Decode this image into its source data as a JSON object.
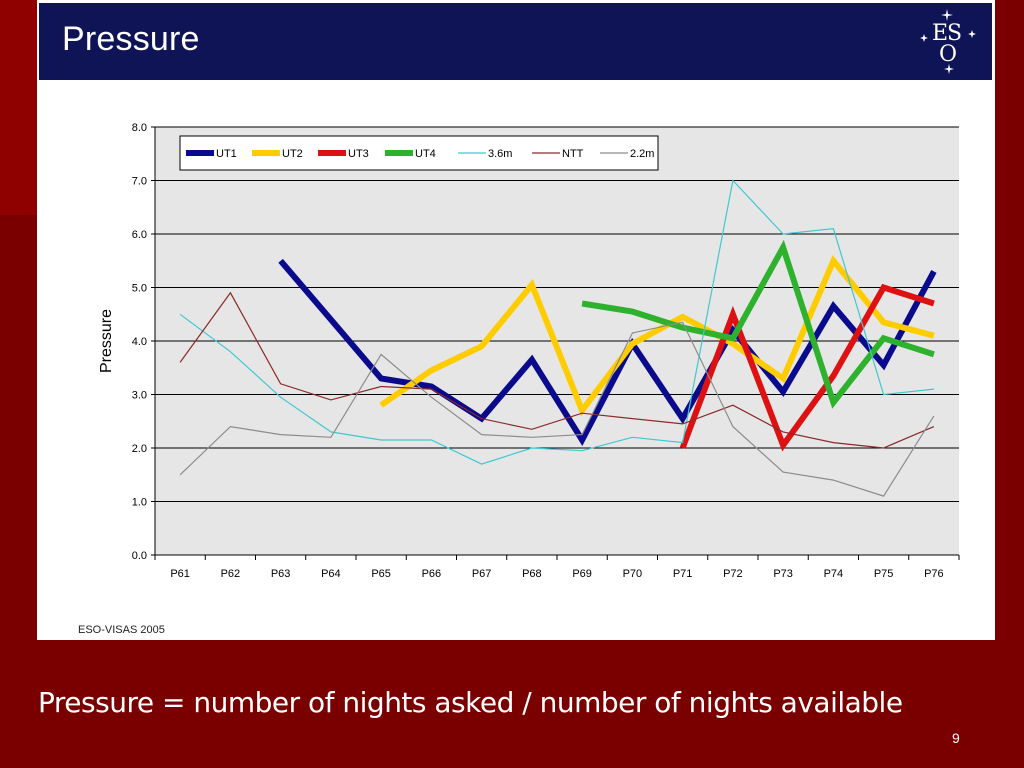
{
  "slide": {
    "title": "Pressure",
    "logo_text": "ESO",
    "source_note": "ESO-VISAS 2005",
    "caption": "Pressure = number of nights asked / number of nights available",
    "page_number": "9"
  },
  "colors": {
    "background": "#7a0000",
    "title_bar": "#0f1457",
    "plot_area": "#e6e6e6"
  },
  "chart_data": {
    "type": "line",
    "title": "",
    "xlabel": "",
    "ylabel": "Pressure",
    "ylim": [
      0,
      8
    ],
    "yticks": [
      "0.0",
      "1.0",
      "2.0",
      "3.0",
      "4.0",
      "5.0",
      "6.0",
      "7.0",
      "8.0"
    ],
    "categories": [
      "P61",
      "P62",
      "P63",
      "P64",
      "P65",
      "P66",
      "P67",
      "P68",
      "P69",
      "P70",
      "P71",
      "P72",
      "P73",
      "P74",
      "P75",
      "P76"
    ],
    "grid": true,
    "legend_position": "top-left",
    "series": [
      {
        "name": "UT1",
        "color": "#0a0a8c",
        "width": "thick",
        "values": [
          null,
          null,
          5.5,
          4.4,
          3.3,
          3.15,
          2.55,
          3.65,
          2.15,
          3.95,
          2.55,
          4.2,
          3.05,
          4.65,
          3.55,
          5.3
        ]
      },
      {
        "name": "UT2",
        "color": "#ffcc00",
        "width": "thick",
        "values": [
          null,
          null,
          null,
          null,
          2.8,
          3.45,
          3.9,
          5.05,
          2.7,
          3.95,
          4.45,
          3.95,
          3.3,
          5.5,
          4.35,
          4.1
        ]
      },
      {
        "name": "UT3",
        "color": "#dd1111",
        "width": "thick",
        "values": [
          null,
          null,
          null,
          null,
          null,
          null,
          null,
          null,
          null,
          null,
          2.0,
          4.5,
          2.05,
          3.35,
          5.0,
          4.7
        ]
      },
      {
        "name": "UT4",
        "color": "#2eb22e",
        "width": "thick",
        "values": [
          null,
          null,
          null,
          null,
          null,
          null,
          null,
          null,
          4.7,
          4.55,
          4.25,
          4.05,
          5.75,
          2.85,
          4.05,
          3.75
        ]
      },
      {
        "name": "3.6m",
        "color": "#40c8d0",
        "width": "thin",
        "values": [
          4.5,
          3.8,
          2.95,
          2.3,
          2.15,
          2.15,
          1.7,
          2.0,
          1.95,
          2.2,
          2.1,
          7.0,
          6.0,
          6.1,
          3.0,
          3.1
        ]
      },
      {
        "name": "NTT",
        "color": "#8b2a2a",
        "width": "thin",
        "values": [
          3.6,
          4.9,
          3.2,
          2.9,
          3.15,
          3.1,
          2.55,
          2.35,
          2.65,
          2.55,
          2.45,
          2.8,
          2.3,
          2.1,
          2.0,
          2.4
        ]
      },
      {
        "name": "2.2m",
        "color": "#8c8c8c",
        "width": "thin",
        "values": [
          1.5,
          2.4,
          2.25,
          2.2,
          3.75,
          2.95,
          2.25,
          2.2,
          2.25,
          4.15,
          4.35,
          2.4,
          1.55,
          1.4,
          1.1,
          2.6
        ]
      }
    ]
  }
}
